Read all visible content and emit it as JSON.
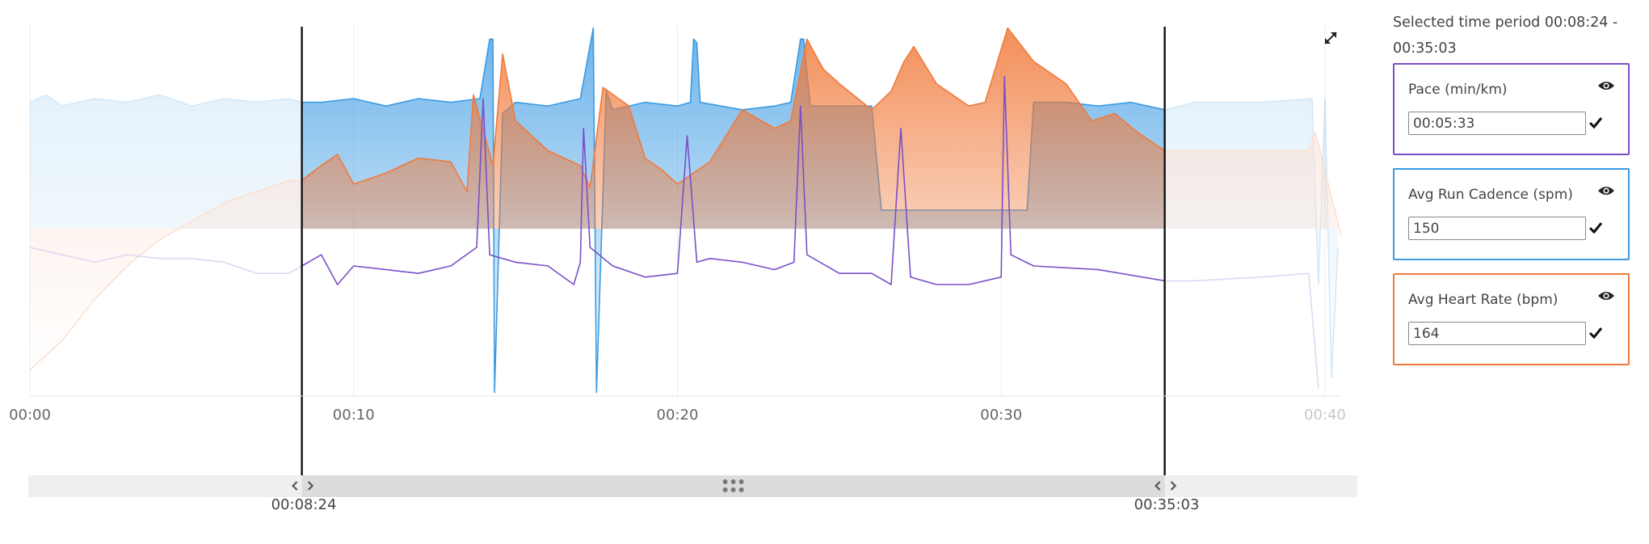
{
  "selection": {
    "period_label": "Selected time period 00:08:24 - 00:35:03",
    "start_label": "00:08:24",
    "end_label": "00:35:03",
    "start_min": 8.4,
    "end_min": 35.05
  },
  "x_axis": {
    "range_min": [
      0,
      40.5
    ],
    "ticks": [
      {
        "min": 0,
        "label": "00:00",
        "faded": false
      },
      {
        "min": 10,
        "label": "00:10",
        "faded": false
      },
      {
        "min": 20,
        "label": "00:20",
        "faded": false
      },
      {
        "min": 30,
        "label": "00:30",
        "faded": false
      },
      {
        "min": 40,
        "label": "00:40",
        "faded": true
      }
    ]
  },
  "metrics": [
    {
      "id": "pace",
      "label": "Pace (min/km)",
      "value": "00:05:33",
      "color": "#7a4fc8"
    },
    {
      "id": "cadence",
      "label": "Avg Run Cadence (spm)",
      "value": "150",
      "color": "#3a9ae3"
    },
    {
      "id": "heart",
      "label": "Avg Heart Rate (bpm)",
      "value": "164",
      "color": "#f07a3a"
    }
  ],
  "icons": {
    "expand": "expand-arrows-icon",
    "eye": "eye-icon",
    "check": "checkmark-icon",
    "scroll_grip": "drag-grip-icon",
    "left_handle": "chevron-left-icon",
    "right_handle": "chevron-right-icon"
  },
  "chart_data": {
    "type": "area",
    "x_unit": "min",
    "series": [
      {
        "color": "#3a9ae3",
        "points": [
          [
            0,
            0.79
          ],
          [
            0.5,
            0.81
          ],
          [
            1,
            0.78
          ],
          [
            2,
            0.8
          ],
          [
            3,
            0.79
          ],
          [
            4,
            0.81
          ],
          [
            5,
            0.78
          ],
          [
            6,
            0.8
          ],
          [
            7,
            0.79
          ],
          [
            8,
            0.8
          ],
          [
            8.4,
            0.79
          ],
          [
            9,
            0.79
          ],
          [
            10,
            0.8
          ],
          [
            11,
            0.78
          ],
          [
            12,
            0.8
          ],
          [
            13,
            0.79
          ],
          [
            13.9,
            0.8
          ],
          [
            14.2,
            0.96
          ],
          [
            14.3,
            0.96
          ],
          [
            14.35,
            0.01
          ],
          [
            14.6,
            0.76
          ],
          [
            15,
            0.79
          ],
          [
            16,
            0.78
          ],
          [
            17,
            0.8
          ],
          [
            17.4,
            0.99
          ],
          [
            17.5,
            0.01
          ],
          [
            17.8,
            0.82
          ],
          [
            18,
            0.77
          ],
          [
            19,
            0.79
          ],
          [
            20,
            0.78
          ],
          [
            20.4,
            0.79
          ],
          [
            20.5,
            0.96
          ],
          [
            20.6,
            0.95
          ],
          [
            20.7,
            0.79
          ],
          [
            22,
            0.77
          ],
          [
            23,
            0.78
          ],
          [
            23.5,
            0.79
          ],
          [
            23.8,
            0.96
          ],
          [
            23.9,
            0.96
          ],
          [
            24.1,
            0.78
          ],
          [
            26,
            0.78
          ],
          [
            26.3,
            0.5
          ],
          [
            30.8,
            0.5
          ],
          [
            31,
            0.79
          ],
          [
            32,
            0.79
          ],
          [
            33,
            0.78
          ],
          [
            34,
            0.79
          ],
          [
            35.05,
            0.77
          ],
          [
            36,
            0.79
          ],
          [
            38,
            0.79
          ],
          [
            39.6,
            0.8
          ],
          [
            39.8,
            0.3
          ],
          [
            40,
            0.8
          ],
          [
            40.2,
            0.05
          ],
          [
            40.4,
            0.4
          ]
        ]
      },
      {
        "color": "#f07a3a",
        "points": [
          [
            0,
            0.07
          ],
          [
            1,
            0.15
          ],
          [
            2,
            0.26
          ],
          [
            3,
            0.35
          ],
          [
            4,
            0.42
          ],
          [
            5,
            0.47
          ],
          [
            6,
            0.52
          ],
          [
            7,
            0.55
          ],
          [
            8,
            0.58
          ],
          [
            8.4,
            0.58
          ],
          [
            9,
            0.62
          ],
          [
            9.5,
            0.65
          ],
          [
            10,
            0.57
          ],
          [
            11,
            0.6
          ],
          [
            12,
            0.64
          ],
          [
            13,
            0.63
          ],
          [
            13.5,
            0.55
          ],
          [
            13.7,
            0.81
          ],
          [
            14.3,
            0.62
          ],
          [
            14.6,
            0.92
          ],
          [
            15,
            0.74
          ],
          [
            16,
            0.66
          ],
          [
            17,
            0.62
          ],
          [
            17.3,
            0.56
          ],
          [
            17.7,
            0.83
          ],
          [
            18.5,
            0.78
          ],
          [
            19,
            0.64
          ],
          [
            19.5,
            0.61
          ],
          [
            20,
            0.57
          ],
          [
            21,
            0.63
          ],
          [
            22,
            0.77
          ],
          [
            23,
            0.72
          ],
          [
            23.5,
            0.74
          ],
          [
            24,
            0.96
          ],
          [
            24.5,
            0.88
          ],
          [
            25,
            0.84
          ],
          [
            26,
            0.77
          ],
          [
            26.6,
            0.82
          ],
          [
            27,
            0.9
          ],
          [
            27.3,
            0.94
          ],
          [
            28,
            0.84
          ],
          [
            29,
            0.78
          ],
          [
            29.5,
            0.79
          ],
          [
            30.2,
            0.99
          ],
          [
            31,
            0.9
          ],
          [
            32,
            0.84
          ],
          [
            32.8,
            0.74
          ],
          [
            33.5,
            0.76
          ],
          [
            34.2,
            0.71
          ],
          [
            35.05,
            0.66
          ],
          [
            36,
            0.66
          ],
          [
            38,
            0.66
          ],
          [
            39.5,
            0.66
          ],
          [
            39.7,
            0.71
          ],
          [
            40.5,
            0.43
          ]
        ]
      },
      {
        "color": "#7a4fc8",
        "points": [
          [
            0,
            0.4
          ],
          [
            1,
            0.38
          ],
          [
            2,
            0.36
          ],
          [
            3,
            0.38
          ],
          [
            4,
            0.37
          ],
          [
            5,
            0.37
          ],
          [
            6,
            0.36
          ],
          [
            7,
            0.33
          ],
          [
            8,
            0.33
          ],
          [
            8.4,
            0.35
          ],
          [
            9,
            0.38
          ],
          [
            9.5,
            0.3
          ],
          [
            10,
            0.35
          ],
          [
            11,
            0.34
          ],
          [
            12,
            0.33
          ],
          [
            13,
            0.35
          ],
          [
            13.8,
            0.4
          ],
          [
            14.0,
            0.8
          ],
          [
            14.2,
            0.38
          ],
          [
            15,
            0.36
          ],
          [
            16,
            0.35
          ],
          [
            16.8,
            0.3
          ],
          [
            17,
            0.36
          ],
          [
            17.1,
            0.72
          ],
          [
            17.3,
            0.4
          ],
          [
            18,
            0.35
          ],
          [
            19,
            0.32
          ],
          [
            20,
            0.33
          ],
          [
            20.3,
            0.7
          ],
          [
            20.6,
            0.36
          ],
          [
            21,
            0.37
          ],
          [
            22,
            0.36
          ],
          [
            23,
            0.34
          ],
          [
            23.6,
            0.36
          ],
          [
            23.8,
            0.78
          ],
          [
            24.0,
            0.38
          ],
          [
            25,
            0.33
          ],
          [
            26,
            0.33
          ],
          [
            26.6,
            0.3
          ],
          [
            26.9,
            0.72
          ],
          [
            27.2,
            0.32
          ],
          [
            28,
            0.3
          ],
          [
            29,
            0.3
          ],
          [
            30,
            0.32
          ],
          [
            30.1,
            0.86
          ],
          [
            30.3,
            0.38
          ],
          [
            31,
            0.35
          ],
          [
            33,
            0.34
          ],
          [
            35.05,
            0.31
          ],
          [
            36,
            0.31
          ],
          [
            38,
            0.32
          ],
          [
            39.5,
            0.33
          ],
          [
            39.8,
            0.02
          ]
        ]
      }
    ]
  }
}
